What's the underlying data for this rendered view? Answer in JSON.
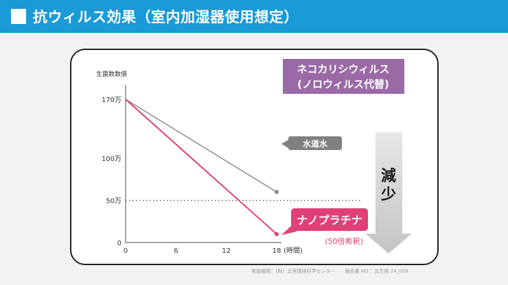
{
  "header": {
    "title": "抗ウィルス効果（室内加湿器使用想定）"
  },
  "chart_data": {
    "type": "line",
    "ylabel": "生菌数数値",
    "xunit": "(時間)",
    "x_ticks": [
      "0",
      "6",
      "12",
      "18"
    ],
    "y_ticks": [
      "170万",
      "100万",
      "50万",
      "0"
    ],
    "xlim": [
      0,
      24
    ],
    "ylim": [
      0,
      1900000
    ],
    "reference_line": {
      "y": 500000,
      "style": "dotted"
    },
    "test_virus_box": {
      "line1": "ネコカリシウィルス",
      "line2": "(ノロウィルス代替)"
    },
    "series": [
      {
        "name": "水道水",
        "color": "#8c8c8c",
        "x": [
          0,
          18
        ],
        "y": [
          1700000,
          600000
        ]
      },
      {
        "name": "ナノプラチナ",
        "note": "(50倍希釈)",
        "color": "#e0407a",
        "x": [
          0,
          18
        ],
        "y": [
          1700000,
          100000
        ]
      }
    ],
    "arrow_label": [
      "減",
      "少"
    ]
  },
  "footer": {
    "credit": "実施機関：（財）北里環境科学センター　　報告書 NO.：北生発 24_009"
  },
  "colors": {
    "header_bg": "#1a9ad6",
    "virus_box_bg": "#9b6aa6",
    "pink": "#e0407a",
    "gray_label_bg": "#808080",
    "arrow_gray": "#c8c8c8"
  }
}
